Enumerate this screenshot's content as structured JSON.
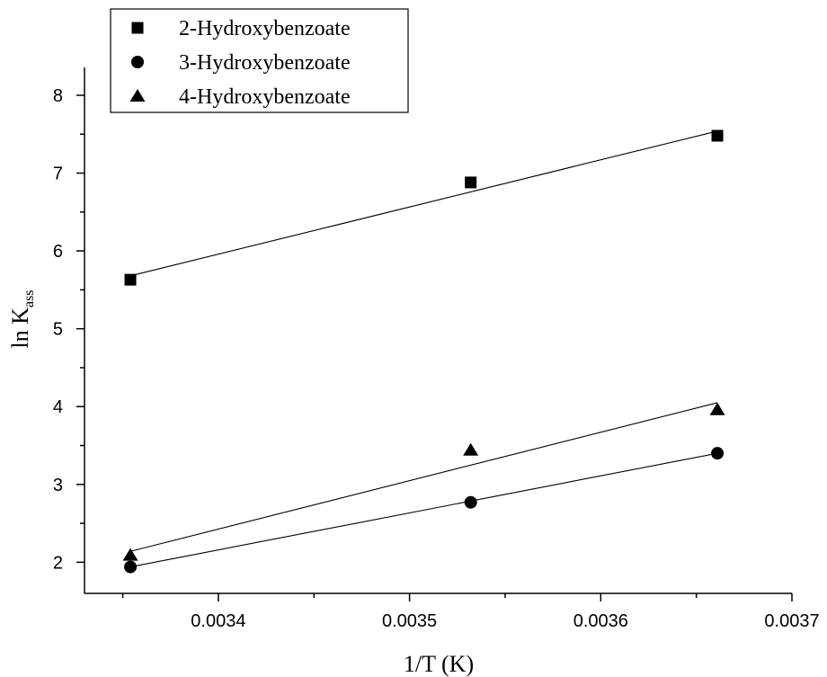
{
  "chart_data": {
    "type": "scatter",
    "xlabel": "1/T (K)",
    "ylabel": {
      "main": "ln K",
      "subscript": "ass"
    },
    "xlim": [
      0.00333,
      0.0037
    ],
    "ylim": [
      1.6,
      8.3
    ],
    "x_ticks": [
      0.0034,
      0.0035,
      0.0036,
      0.0037
    ],
    "x_tick_labels": [
      "0.0034",
      "0.0035",
      "0.0036",
      "0.0037"
    ],
    "y_ticks": [
      2,
      3,
      4,
      5,
      6,
      7,
      8
    ],
    "y_tick_labels": [
      "2",
      "3",
      "4",
      "5",
      "6",
      "7",
      "8"
    ],
    "grid": false,
    "legend_position": "top-left",
    "colors": {
      "markers": "#000000",
      "fit_lines": "#000000"
    },
    "series": [
      {
        "name": "2-Hydroxybenzoate",
        "marker": "square",
        "x": [
          0.003354,
          0.003532,
          0.003661
        ],
        "y": [
          5.63,
          6.88,
          7.48
        ],
        "fit": {
          "x": [
            0.003354,
            0.003661
          ],
          "y": [
            5.68,
            7.54
          ]
        }
      },
      {
        "name": "3-Hydroxybenzoate",
        "marker": "circle",
        "x": [
          0.003354,
          0.003532,
          0.003661
        ],
        "y": [
          1.94,
          2.77,
          3.4
        ],
        "fit": {
          "x": [
            0.003354,
            0.003661
          ],
          "y": [
            1.94,
            3.4
          ]
        }
      },
      {
        "name": "4-Hydroxybenzoate",
        "marker": "triangle",
        "x": [
          0.003354,
          0.003532,
          0.003661
        ],
        "y": [
          2.09,
          3.44,
          3.96
        ],
        "fit": {
          "x": [
            0.003354,
            0.003661
          ],
          "y": [
            2.14,
            4.05
          ]
        }
      }
    ]
  }
}
